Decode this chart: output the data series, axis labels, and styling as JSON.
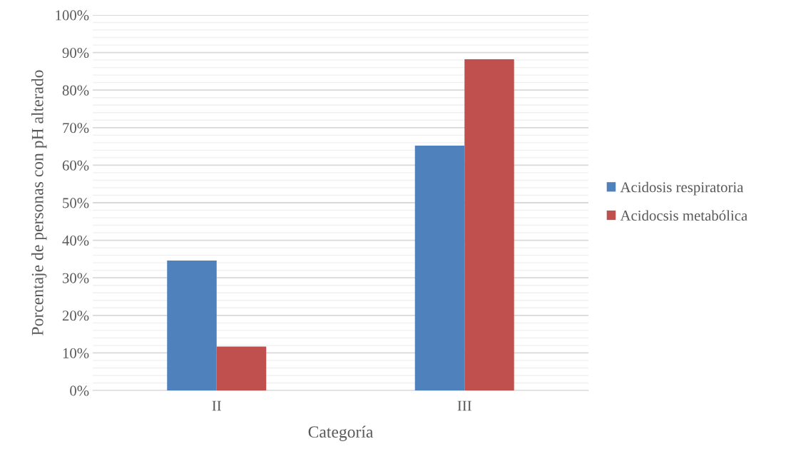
{
  "chart_data": {
    "type": "bar",
    "xlabel": "Categoría",
    "ylabel": "Porcentaje de personas con pH alterado",
    "categories": [
      "II",
      "III"
    ],
    "series": [
      {
        "name": "Acidosis respiratoria",
        "color": "#4f81bd",
        "values": [
          34.6,
          65.2
        ]
      },
      {
        "name": "Acidocsis metabólica",
        "color": "#c0504d",
        "values": [
          11.7,
          88.2
        ]
      }
    ],
    "ylim": [
      0,
      100
    ],
    "yticks": [
      {
        "value": 0,
        "label": "0%"
      },
      {
        "value": 2,
        "label": null
      },
      {
        "value": 4,
        "label": null
      },
      {
        "value": 6,
        "label": null
      },
      {
        "value": 8,
        "label": null
      },
      {
        "value": 10,
        "label": "10%"
      },
      {
        "value": 12,
        "label": null
      },
      {
        "value": 14,
        "label": null
      },
      {
        "value": 16,
        "label": null
      },
      {
        "value": 18,
        "label": null
      },
      {
        "value": 20,
        "label": "20%"
      },
      {
        "value": 22,
        "label": null
      },
      {
        "value": 24,
        "label": null
      },
      {
        "value": 26,
        "label": null
      },
      {
        "value": 28,
        "label": null
      },
      {
        "value": 30,
        "label": "30%"
      },
      {
        "value": 32,
        "label": null
      },
      {
        "value": 34,
        "label": null
      },
      {
        "value": 36,
        "label": null
      },
      {
        "value": 38,
        "label": null
      },
      {
        "value": 40,
        "label": "40%"
      },
      {
        "value": 42,
        "label": null
      },
      {
        "value": 44,
        "label": null
      },
      {
        "value": 46,
        "label": null
      },
      {
        "value": 48,
        "label": null
      },
      {
        "value": 50,
        "label": "50%"
      },
      {
        "value": 52,
        "label": null
      },
      {
        "value": 54,
        "label": null
      },
      {
        "value": 56,
        "label": null
      },
      {
        "value": 58,
        "label": null
      },
      {
        "value": 60,
        "label": "60%"
      },
      {
        "value": 62,
        "label": null
      },
      {
        "value": 64,
        "label": null
      },
      {
        "value": 66,
        "label": null
      },
      {
        "value": 68,
        "label": null
      },
      {
        "value": 70,
        "label": "70%"
      },
      {
        "value": 72,
        "label": null
      },
      {
        "value": 74,
        "label": null
      },
      {
        "value": 76,
        "label": null
      },
      {
        "value": 78,
        "label": null
      },
      {
        "value": 80,
        "label": "80%"
      },
      {
        "value": 82,
        "label": null
      },
      {
        "value": 84,
        "label": null
      },
      {
        "value": 86,
        "label": null
      },
      {
        "value": 88,
        "label": null
      },
      {
        "value": 90,
        "label": "90%"
      },
      {
        "value": 92,
        "label": null
      },
      {
        "value": 94,
        "label": null
      },
      {
        "value": 96,
        "label": null
      },
      {
        "value": 98,
        "label": null
      },
      {
        "value": 100,
        "label": "100%"
      }
    ],
    "grid": "y",
    "legend": "right"
  }
}
